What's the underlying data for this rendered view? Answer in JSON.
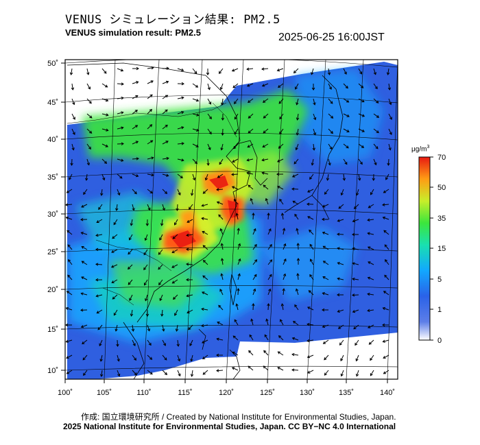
{
  "header": {
    "title_jp": "VENUS シミュレーション結果: PM2.5",
    "title_en": "VENUS simulation result: PM2.5",
    "timestamp": "2025-06-25 16:00JST"
  },
  "map": {
    "lat_labels": [
      "50˚",
      "45˚",
      "40˚",
      "35˚",
      "30˚",
      "25˚",
      "20˚",
      "15˚",
      "10˚"
    ],
    "lon_labels": [
      "100˚",
      "105˚",
      "110˚",
      "115˚",
      "120˚",
      "125˚",
      "130˚",
      "135˚",
      "140˚"
    ]
  },
  "colorbar": {
    "unit_base": "μg/m",
    "unit_sup": "3",
    "tick_labels": [
      "70",
      "50",
      "35",
      "15",
      "5",
      "1",
      "0"
    ],
    "colors": [
      "#ffffff",
      "#2f5fe0",
      "#12b4ff",
      "#19e0b0",
      "#3ce63c",
      "#c8ee2a",
      "#ff9c14",
      "#e81a12"
    ]
  },
  "footer": {
    "credit_line1": "作成: 国立環境研究所 / Created by National Institute for Environmental Studies, Japan.",
    "credit_line2": "2025 National Institute for Environmental Studies, Japan. CC BY−NC 4.0 International"
  }
}
